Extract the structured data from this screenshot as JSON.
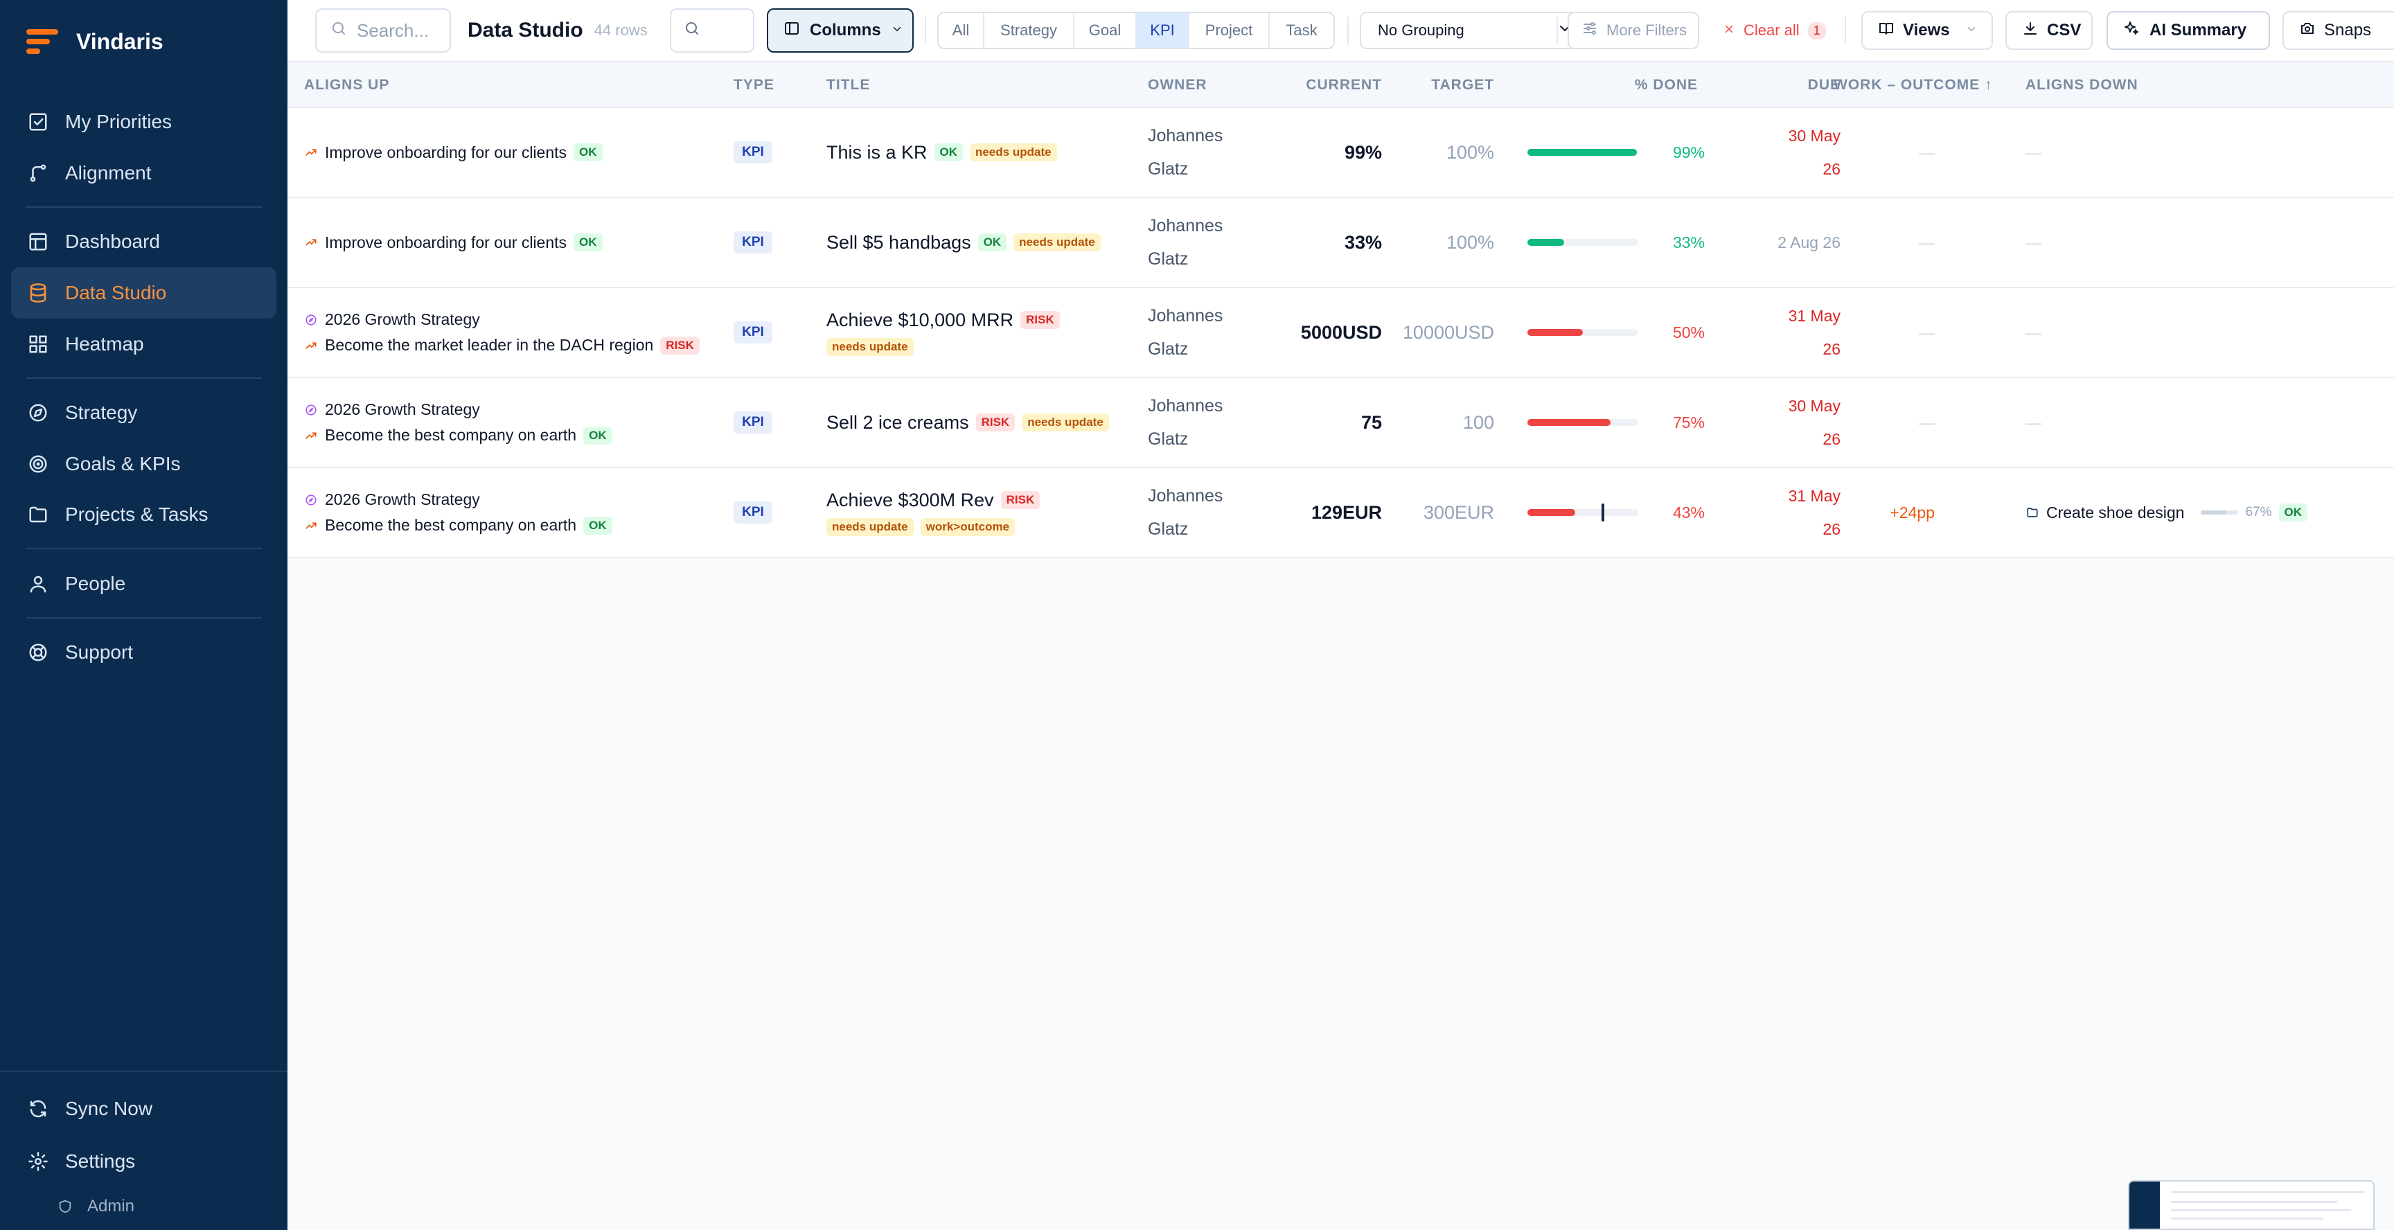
{
  "app": {
    "name": "Vindaris"
  },
  "sidebar": {
    "items": [
      {
        "label": "My Priorities",
        "icon": "check-square-icon"
      },
      {
        "label": "Alignment",
        "icon": "branch-icon"
      },
      {
        "label": "Dashboard",
        "icon": "layout-icon"
      },
      {
        "label": "Data Studio",
        "icon": "database-icon",
        "active": true
      },
      {
        "label": "Heatmap",
        "icon": "grid-icon"
      },
      {
        "label": "Strategy",
        "icon": "compass-icon"
      },
      {
        "label": "Goals & KPIs",
        "icon": "target-icon"
      },
      {
        "label": "Projects & Tasks",
        "icon": "folder-icon"
      },
      {
        "label": "People",
        "icon": "user-icon"
      },
      {
        "label": "Support",
        "icon": "lifebuoy-icon"
      }
    ],
    "sync": "Sync Now",
    "settings": "Settings",
    "admin": "Admin"
  },
  "toolbar": {
    "search_placeholder": "Search...",
    "title": "Data Studio",
    "row_count": "44 rows",
    "columns_label": "Columns",
    "type_filters": [
      "All",
      "Strategy",
      "Goal",
      "KPI",
      "Project",
      "Task"
    ],
    "active_type": "KPI",
    "grouping": "No Grouping",
    "more_filters": "More Filters",
    "clear_all": "Clear all",
    "clear_count": "1",
    "views": "Views",
    "csv": "CSV",
    "ai_summary": "AI Summary",
    "snapshot": "Snaps"
  },
  "table": {
    "headers": {
      "aligns_up": "ALIGNS UP",
      "type": "TYPE",
      "title": "TITLE",
      "owner": "OWNER",
      "current": "CURRENT",
      "target": "TARGET",
      "pct_done": "% DONE",
      "due": "DUE",
      "work_outcome": "WORK – OUTCOME ↑",
      "aligns_down": "ALIGNS DOWN"
    },
    "rows": [
      {
        "aligns_up": [
          {
            "kind": "goal",
            "text": "Improve onboarding for our clients",
            "badge": "OK"
          }
        ],
        "type": "KPI",
        "title": "This is a KR",
        "title_badges": [
          "OK",
          "needs update"
        ],
        "owner_first": "Johannes",
        "owner_last": "Glatz",
        "current": "99%",
        "target": "100%",
        "pct": "99%",
        "pct_value": 99,
        "pct_status": "green",
        "due_line1": "30 May",
        "due_line2": "26",
        "due_status": "red",
        "work_outcome": "—",
        "aligns_down": "—"
      },
      {
        "aligns_up": [
          {
            "kind": "goal",
            "text": "Improve onboarding for our clients",
            "badge": "OK"
          }
        ],
        "type": "KPI",
        "title": "Sell $5 handbags",
        "title_badges": [
          "OK",
          "needs update"
        ],
        "owner_first": "Johannes",
        "owner_last": "Glatz",
        "current": "33%",
        "target": "100%",
        "pct": "33%",
        "pct_value": 33,
        "pct_status": "green",
        "due_line1": "2 Aug 26",
        "due_line2": "",
        "due_status": "gray",
        "work_outcome": "—",
        "aligns_down": "—"
      },
      {
        "aligns_up": [
          {
            "kind": "strategy",
            "text": "2026 Growth Strategy",
            "badge": ""
          },
          {
            "kind": "goal",
            "text": "Become the market leader in the DACH region",
            "badge": "RISK"
          }
        ],
        "type": "KPI",
        "title": "Achieve $10,000 MRR",
        "title_badges": [
          "RISK"
        ],
        "title_badges2": [
          "needs update"
        ],
        "owner_first": "Johannes",
        "owner_last": "Glatz",
        "current": "5000USD",
        "target": "10000USD",
        "pct": "50%",
        "pct_value": 50,
        "pct_status": "red",
        "due_line1": "31 May",
        "due_line2": "26",
        "due_status": "red",
        "work_outcome": "—",
        "aligns_down": "—"
      },
      {
        "aligns_up": [
          {
            "kind": "strategy",
            "text": "2026 Growth Strategy",
            "badge": ""
          },
          {
            "kind": "goal",
            "text": "Become the best company on earth",
            "badge": "OK"
          }
        ],
        "type": "KPI",
        "title": "Sell 2 ice creams",
        "title_badges": [
          "RISK",
          "needs update"
        ],
        "owner_first": "Johannes",
        "owner_last": "Glatz",
        "current": "75",
        "target": "100",
        "pct": "75%",
        "pct_value": 75,
        "pct_status": "red",
        "due_line1": "30 May",
        "due_line2": "26",
        "due_status": "red",
        "work_outcome": "—",
        "aligns_down": "—"
      },
      {
        "aligns_up": [
          {
            "kind": "strategy",
            "text": "2026 Growth Strategy",
            "badge": ""
          },
          {
            "kind": "goal",
            "text": "Become the best company on earth",
            "badge": "OK"
          }
        ],
        "type": "KPI",
        "title": "Achieve $300M Rev",
        "title_badges": [
          "RISK"
        ],
        "title_badges2": [
          "needs update",
          "work>outcome"
        ],
        "owner_first": "Johannes",
        "owner_last": "Glatz",
        "current": "129EUR",
        "target": "300EUR",
        "pct": "43%",
        "pct_value": 43,
        "pct_status": "red",
        "expected_value": 67,
        "due_line1": "31 May",
        "due_line2": "26",
        "due_status": "red",
        "work_outcome": "+24pp",
        "aligns_down": "Create shoe design",
        "aligns_down_pct": "67%",
        "aligns_down_pct_value": 67,
        "aligns_down_badge": "OK"
      }
    ]
  },
  "colors": {
    "sidebar_bg": "#0b2b4f",
    "accent": "#f97316",
    "ok": "#10b981",
    "risk": "#ef4444"
  }
}
